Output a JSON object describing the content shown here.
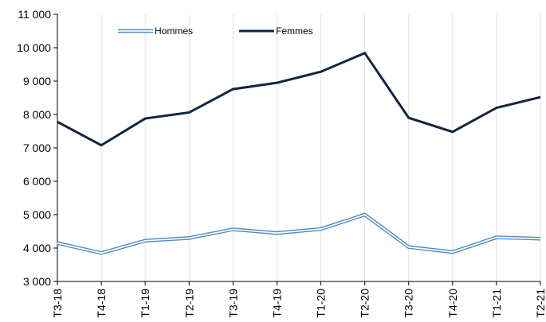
{
  "chart_data": {
    "type": "line",
    "categories": [
      "T3-18",
      "T4-18",
      "T1-19",
      "T2-19",
      "T3-19",
      "T4-19",
      "T1-20",
      "T2-20",
      "T3-20",
      "T4-20",
      "T1-21",
      "T2-21"
    ],
    "series": [
      {
        "name": "Hommes",
        "values": [
          4150,
          3850,
          4220,
          4300,
          4560,
          4450,
          4570,
          5000,
          4030,
          3880,
          4320,
          4280
        ],
        "color": "#4a86c5",
        "style": "double-line"
      },
      {
        "name": "Femmes",
        "values": [
          7780,
          7080,
          7880,
          8060,
          8760,
          8950,
          9280,
          9840,
          7900,
          7480,
          8200,
          8520
        ],
        "color": "#13253f",
        "style": "solid"
      }
    ],
    "ylim": [
      3000,
      11000
    ],
    "yticks": [
      3000,
      4000,
      5000,
      6000,
      7000,
      8000,
      9000,
      10000,
      11000
    ],
    "ytick_labels": [
      "3 000",
      "4 000",
      "5 000",
      "6 000",
      "7 000",
      "8 000",
      "9 000",
      "10 000",
      "11 000"
    ],
    "title": "",
    "xlabel": "",
    "ylabel": "",
    "grid": true,
    "legend_position": "top-left"
  }
}
